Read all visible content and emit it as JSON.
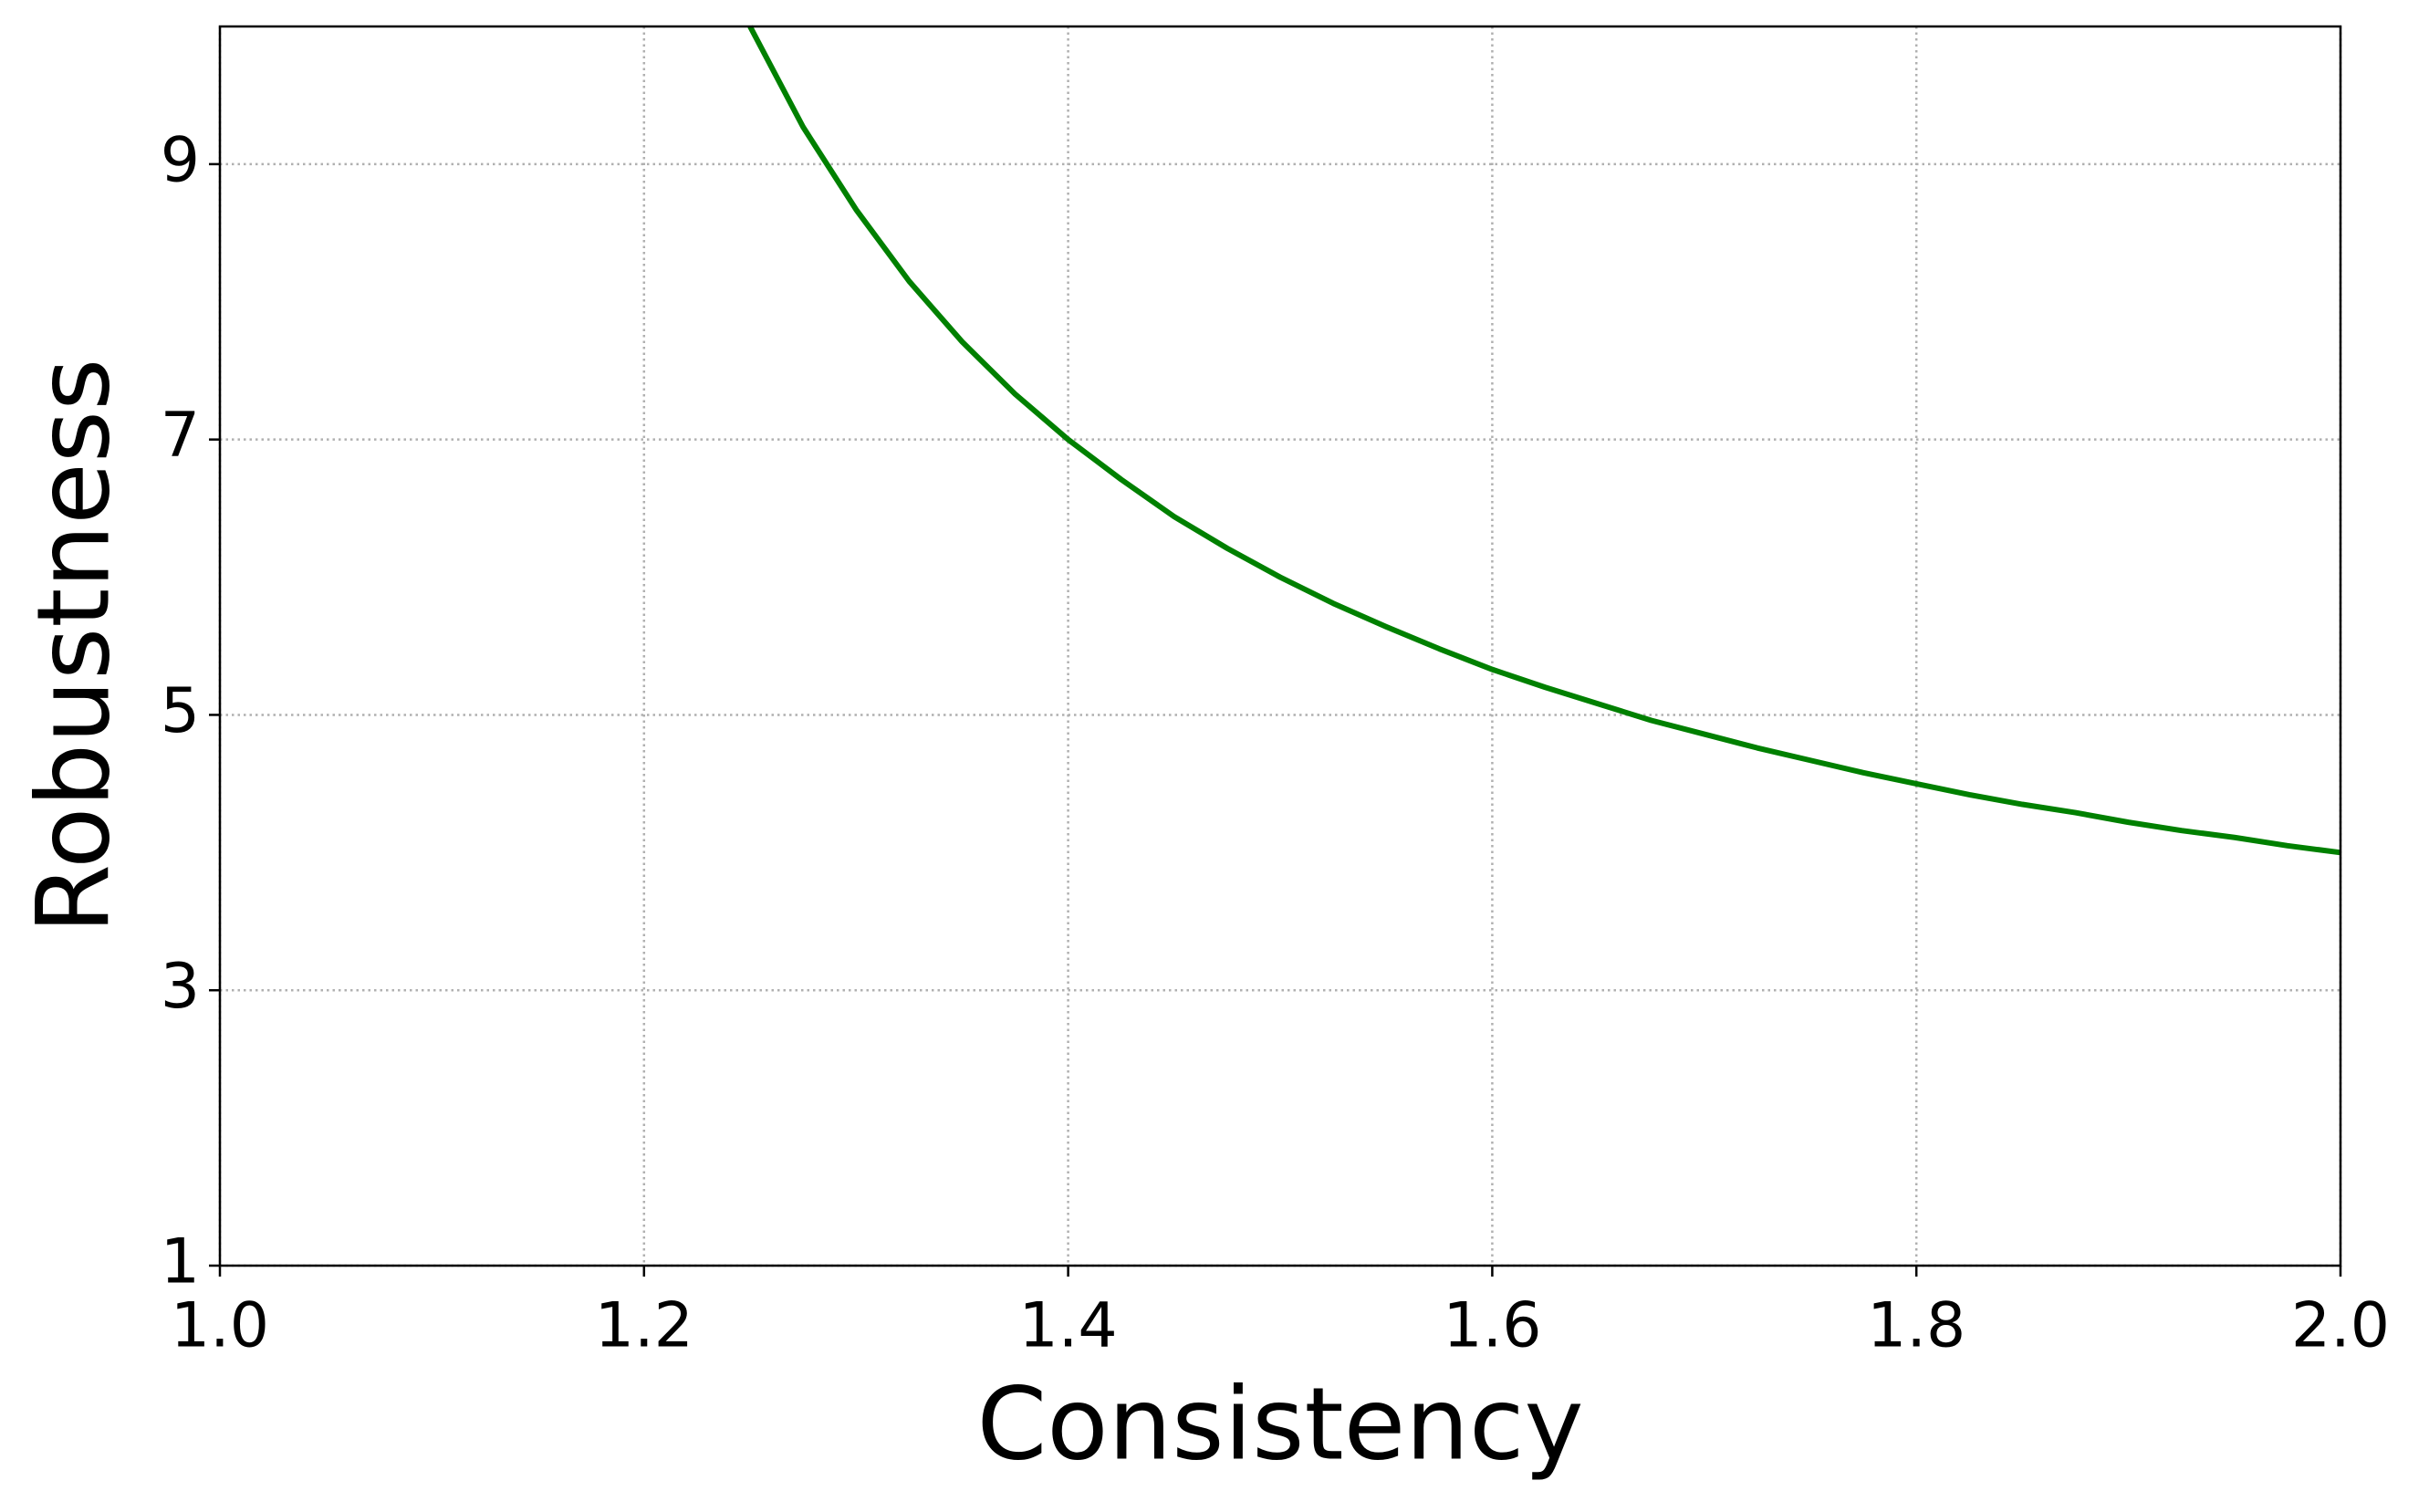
{
  "chart_data": {
    "type": "line",
    "xlabel": "Consistency",
    "ylabel": "Robustness",
    "x": [
      1.25,
      1.275,
      1.3,
      1.325,
      1.35,
      1.375,
      1.4,
      1.425,
      1.45,
      1.475,
      1.5,
      1.525,
      1.55,
      1.575,
      1.6,
      1.625,
      1.65,
      1.675,
      1.7,
      1.725,
      1.75,
      1.775,
      1.8,
      1.825,
      1.85,
      1.875,
      1.9,
      1.925,
      1.95,
      1.975,
      2.0
    ],
    "series": [
      {
        "color": "#008000",
        "values": [
          10,
          9.27,
          8.67,
          8.15,
          7.71,
          7.33,
          7,
          6.71,
          6.44,
          6.21,
          6,
          5.81,
          5.64,
          5.48,
          5.33,
          5.2,
          5.08,
          4.96,
          4.86,
          4.76,
          4.67,
          4.58,
          4.5,
          4.42,
          4.35,
          4.29,
          4.22,
          4.16,
          4.11,
          4.05,
          4
        ]
      }
    ],
    "xlim": [
      1.0,
      2.0
    ],
    "ylim": [
      1,
      10
    ],
    "xticks": [
      {
        "value": 1,
        "label": "1.0"
      },
      1.2,
      1.4,
      1.6,
      1.8,
      {
        "value": 2,
        "label": "2.0"
      }
    ],
    "yticks": [
      1,
      3,
      5,
      7,
      9
    ],
    "grid": true
  }
}
